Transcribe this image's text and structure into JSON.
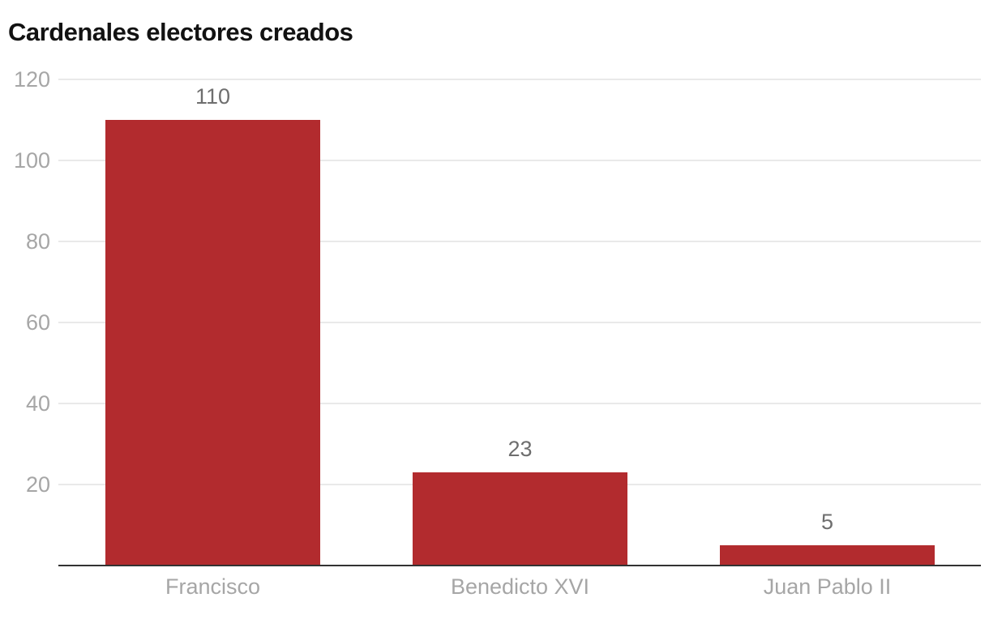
{
  "chart_data": {
    "type": "bar",
    "title": "Cardenales electores creados",
    "xlabel": "",
    "ylabel": "",
    "categories": [
      "Francisco",
      "Benedicto XVI",
      "Juan Pablo II"
    ],
    "values": [
      110,
      23,
      5
    ],
    "data_labels": [
      "110",
      "23",
      "5"
    ],
    "yticks": [
      20,
      40,
      60,
      80,
      100,
      120
    ],
    "ylim": [
      0,
      120
    ],
    "grid": true,
    "legend": "none",
    "bar_color": "#b22b2e"
  }
}
